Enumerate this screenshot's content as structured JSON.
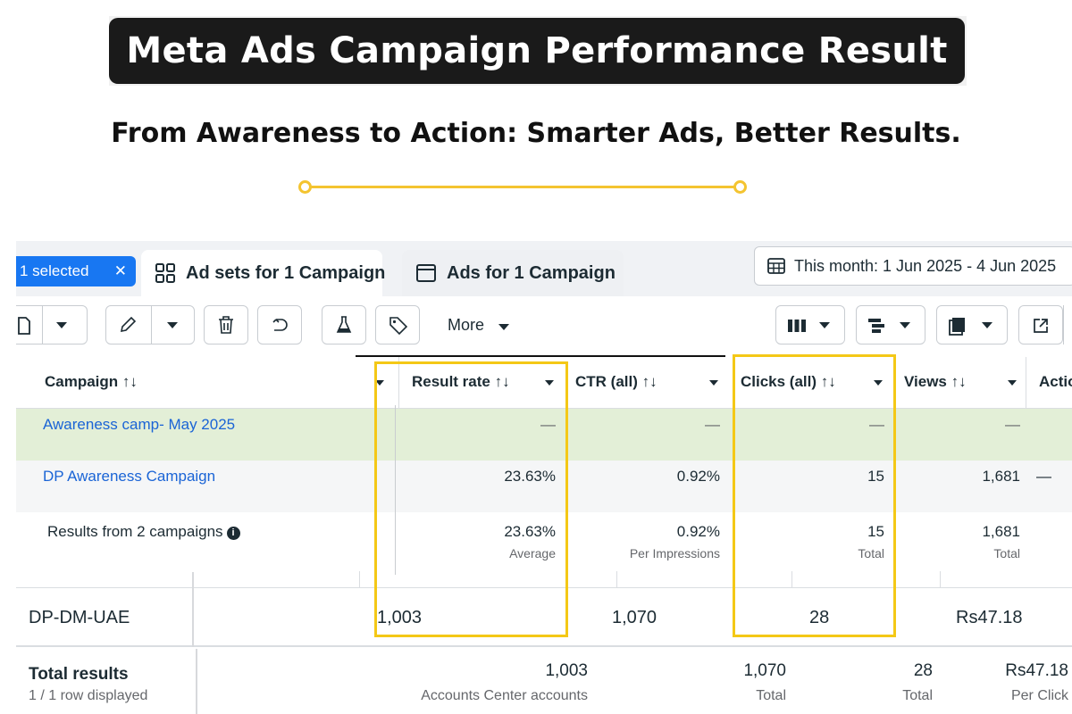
{
  "header": {
    "title": "Meta Ads Campaign Performance Result",
    "subtitle": "From Awareness to Action: Smarter Ads, Better Results."
  },
  "colors": {
    "accent": "#f4c430",
    "highlight": "#f4c816",
    "link": "#1a64d6",
    "selected_chip": "#1877f2",
    "row_highlight": "#e3efd7"
  },
  "tabs": {
    "selected_chip": "1 selected",
    "selected_close": "✕",
    "adsets_label": "Ad sets for 1 Campaign",
    "ads_label": "Ads for 1 Campaign",
    "date_range": "This month: 1 Jun 2025 - 4 Jun 2025"
  },
  "toolbar": {
    "more_label": "More"
  },
  "table": {
    "headers": {
      "campaign": "Campaign ↑↓",
      "result_rate": "Result rate ↑↓",
      "ctr": "CTR (all) ↑↓",
      "clicks": "Clicks (all) ↑↓",
      "views": "Views ↑↓",
      "actions": "Actio"
    },
    "rows": [
      {
        "campaign": "Awareness camp- May 2025",
        "result_rate": "—",
        "ctr": "—",
        "clicks": "—",
        "views": "—",
        "actions": ""
      },
      {
        "campaign": "DP Awareness Campaign",
        "result_rate": "23.63%",
        "ctr": "0.92%",
        "clicks": "15",
        "views": "1,681",
        "actions": "—"
      }
    ],
    "summary": {
      "label": "Results from 2 campaigns",
      "result_rate": "23.63%",
      "result_rate_sub": "Average",
      "ctr": "0.92%",
      "ctr_sub": "Per Impressions",
      "clicks": "15",
      "clicks_sub": "Total",
      "views": "1,681",
      "views_sub": "Total"
    }
  },
  "lower_table": {
    "row": {
      "name": "DP-DM-UAE",
      "v1": "1,003",
      "v2": "1,070",
      "v3": "28",
      "v4": "Rs47.18"
    },
    "totals": {
      "title": "Total results",
      "rows_displayed": "1 / 1 row displayed",
      "v1": "1,003",
      "v1_label": "Accounts Center accounts",
      "v2": "1,070",
      "v2_label": "Total",
      "v3": "28",
      "v3_label": "Total",
      "v4": "Rs47.18",
      "v4_label": "Per Click"
    }
  }
}
